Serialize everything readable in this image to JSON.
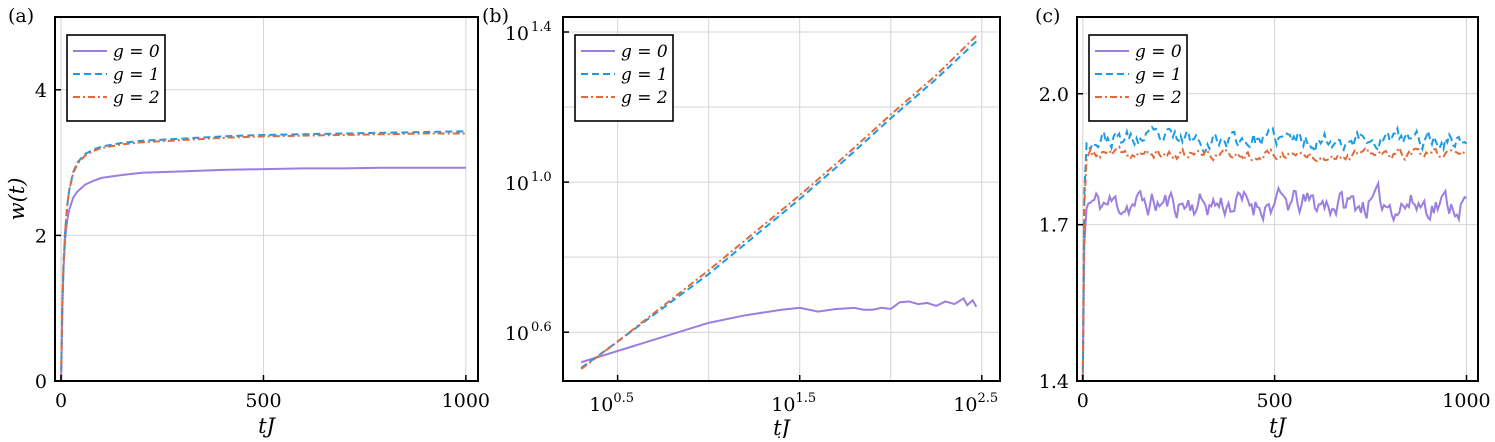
{
  "chart_data": [
    {
      "panel_label": "(a)",
      "type": "line",
      "xlabel": "tJ",
      "ylabel": "w(t)",
      "xscale": "linear",
      "yscale": "linear",
      "xlim": [
        -15,
        1030
      ],
      "ylim": [
        0,
        5
      ],
      "xticks": [
        0,
        500,
        1000
      ],
      "xtick_labels": [
        "0",
        "500",
        "1000"
      ],
      "yticks": [
        0,
        2,
        4
      ],
      "ytick_labels": [
        "0",
        "2",
        "4"
      ],
      "grid": true,
      "legend_position": "top-left",
      "series": [
        {
          "name": "g = 0",
          "color": "#9b7fe0",
          "style": "solid",
          "x": [
            0,
            3,
            6,
            10,
            15,
            20,
            30,
            40,
            60,
            80,
            100,
            150,
            200,
            300,
            400,
            500,
            600,
            700,
            800,
            900,
            1000
          ],
          "y": [
            0,
            1.0,
            1.55,
            1.95,
            2.2,
            2.35,
            2.52,
            2.6,
            2.7,
            2.75,
            2.79,
            2.83,
            2.86,
            2.88,
            2.9,
            2.91,
            2.92,
            2.92,
            2.93,
            2.93,
            2.93
          ]
        },
        {
          "name": "g = 1",
          "color": "#1b9be6",
          "style": "dashed",
          "x": [
            0,
            3,
            6,
            10,
            15,
            20,
            30,
            40,
            60,
            80,
            100,
            150,
            200,
            300,
            400,
            500,
            600,
            700,
            800,
            900,
            1000
          ],
          "y": [
            0,
            1.0,
            1.6,
            2.05,
            2.4,
            2.62,
            2.87,
            3.0,
            3.12,
            3.18,
            3.22,
            3.27,
            3.3,
            3.33,
            3.36,
            3.38,
            3.39,
            3.4,
            3.41,
            3.42,
            3.43
          ]
        },
        {
          "name": "g = 2",
          "color": "#e06a3c",
          "style": "dashdot",
          "x": [
            0,
            3,
            6,
            10,
            15,
            20,
            30,
            40,
            60,
            80,
            100,
            150,
            200,
            300,
            400,
            500,
            600,
            700,
            800,
            900,
            1000
          ],
          "y": [
            0,
            1.0,
            1.6,
            2.05,
            2.4,
            2.62,
            2.85,
            2.98,
            3.1,
            3.16,
            3.2,
            3.25,
            3.28,
            3.31,
            3.34,
            3.36,
            3.37,
            3.38,
            3.39,
            3.4,
            3.4
          ]
        }
      ]
    },
    {
      "panel_label": "(b)",
      "type": "line",
      "xlabel": "tJ",
      "ylabel": "",
      "xscale": "log",
      "yscale": "log",
      "xlim_log10": [
        0.2,
        2.6
      ],
      "ylim_log10": [
        0.47,
        1.44
      ],
      "xticks_log10": [
        0.5,
        1.5,
        2.5
      ],
      "xtick_labels": [
        {
          "base": "10",
          "exp": "0.5"
        },
        {
          "base": "10",
          "exp": "1.5"
        },
        {
          "base": "10",
          "exp": "2.5"
        }
      ],
      "yticks_log10": [
        0.6,
        1.0,
        1.4
      ],
      "ytick_labels": [
        {
          "base": "10",
          "exp": "0.6"
        },
        {
          "base": "10",
          "exp": "1.0"
        },
        {
          "base": "10",
          "exp": "1.4"
        }
      ],
      "extra_gridlines_log10": {
        "x": [
          1.0,
          2.0
        ],
        "y": [
          0.8,
          1.2
        ]
      },
      "grid": true,
      "legend_position": "top-left",
      "series": [
        {
          "name": "g = 0",
          "color": "#9b7fe0",
          "style": "solid",
          "x_log10": [
            0.3,
            0.4,
            0.6,
            0.8,
            1.0,
            1.2,
            1.4,
            1.5,
            1.6,
            1.7,
            1.8,
            1.85,
            1.9,
            1.95,
            2.0,
            2.05,
            2.1,
            2.15,
            2.2,
            2.25,
            2.3,
            2.35,
            2.4,
            2.42,
            2.45,
            2.47
          ],
          "y_log10": [
            0.52,
            0.535,
            0.565,
            0.595,
            0.625,
            0.645,
            0.66,
            0.665,
            0.655,
            0.662,
            0.665,
            0.66,
            0.66,
            0.665,
            0.662,
            0.68,
            0.682,
            0.675,
            0.678,
            0.67,
            0.682,
            0.675,
            0.69,
            0.672,
            0.685,
            0.668
          ]
        },
        {
          "name": "g = 1",
          "color": "#1b9be6",
          "style": "dashed",
          "x_log10": [
            0.3,
            0.5,
            0.75,
            1.0,
            1.25,
            1.5,
            1.75,
            2.0,
            2.25,
            2.47
          ],
          "y_log10": [
            0.505,
            0.575,
            0.665,
            0.755,
            0.855,
            0.955,
            1.06,
            1.17,
            1.275,
            1.375
          ]
        },
        {
          "name": "g = 2",
          "color": "#e06a3c",
          "style": "dashdot",
          "x_log10": [
            0.3,
            0.5,
            0.75,
            1.0,
            1.25,
            1.5,
            1.75,
            2.0,
            2.25,
            2.47
          ],
          "y_log10": [
            0.502,
            0.575,
            0.67,
            0.765,
            0.865,
            0.965,
            1.07,
            1.18,
            1.285,
            1.39
          ]
        }
      ]
    },
    {
      "panel_label": "(c)",
      "type": "line",
      "xlabel": "tJ",
      "ylabel": "",
      "xscale": "linear",
      "yscale": "log",
      "xlim": [
        -15,
        1030
      ],
      "ylim": [
        1.4,
        2.2
      ],
      "xticks": [
        0,
        500,
        1000
      ],
      "xtick_labels": [
        "0",
        "500",
        "1000"
      ],
      "yticks": [
        1.4,
        1.7,
        2.0
      ],
      "ytick_labels": [
        "1.4",
        "1.7",
        "2.0"
      ],
      "grid": true,
      "legend_position": "top-left",
      "series": [
        {
          "name": "g = 0",
          "color": "#9b7fe0",
          "style": "solid",
          "base": 1.745,
          "amp": 0.022,
          "seed": 11,
          "rise_from": 1.4
        },
        {
          "name": "g = 1",
          "color": "#1b9be6",
          "style": "dashed",
          "base": 1.89,
          "amp": 0.016,
          "seed": 23,
          "rise_from": 1.4
        },
        {
          "name": "g = 2",
          "color": "#e06a3c",
          "style": "dashdot",
          "base": 1.855,
          "amp": 0.009,
          "seed": 37,
          "rise_from": 1.4
        }
      ]
    }
  ]
}
